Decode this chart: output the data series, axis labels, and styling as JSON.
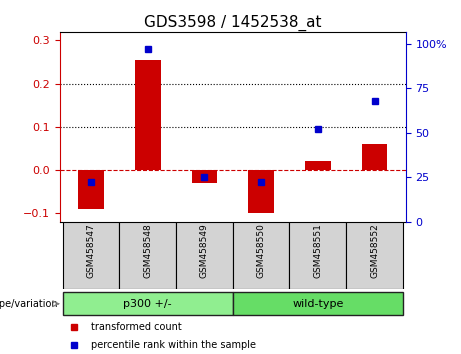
{
  "title": "GDS3598 / 1452538_at",
  "categories": [
    "GSM458547",
    "GSM458548",
    "GSM458549",
    "GSM458550",
    "GSM458551",
    "GSM458552"
  ],
  "bar_values": [
    -0.09,
    0.255,
    -0.03,
    -0.1,
    0.02,
    0.06
  ],
  "scatter_values": [
    22,
    97,
    25,
    22,
    52,
    68
  ],
  "left_ylim": [
    -0.12,
    0.32
  ],
  "right_ylim": [
    0,
    106.67
  ],
  "left_yticks": [
    -0.1,
    0.0,
    0.1,
    0.2,
    0.3
  ],
  "right_yticks": [
    0,
    25,
    50,
    75,
    100
  ],
  "right_yticklabels": [
    "0",
    "25",
    "50",
    "75",
    "100%"
  ],
  "hlines": [
    0.1,
    0.2
  ],
  "bar_color": "#cc0000",
  "scatter_color": "#0000cc",
  "zero_line_color": "#cc0000",
  "hline_color": "black",
  "groups": [
    {
      "label": "p300 +/-",
      "start": 0,
      "end": 2,
      "color": "#90ee90"
    },
    {
      "label": "wild-type",
      "start": 3,
      "end": 5,
      "color": "#66dd66"
    }
  ],
  "group_label": "genotype/variation",
  "legend_items": [
    {
      "label": "transformed count",
      "color": "#cc0000"
    },
    {
      "label": "percentile rank within the sample",
      "color": "#0000cc"
    }
  ],
  "sample_bg_color": "#d3d3d3",
  "plot_bg_color": "#ffffff",
  "tick_label_fontsize": 8,
  "title_fontsize": 11
}
